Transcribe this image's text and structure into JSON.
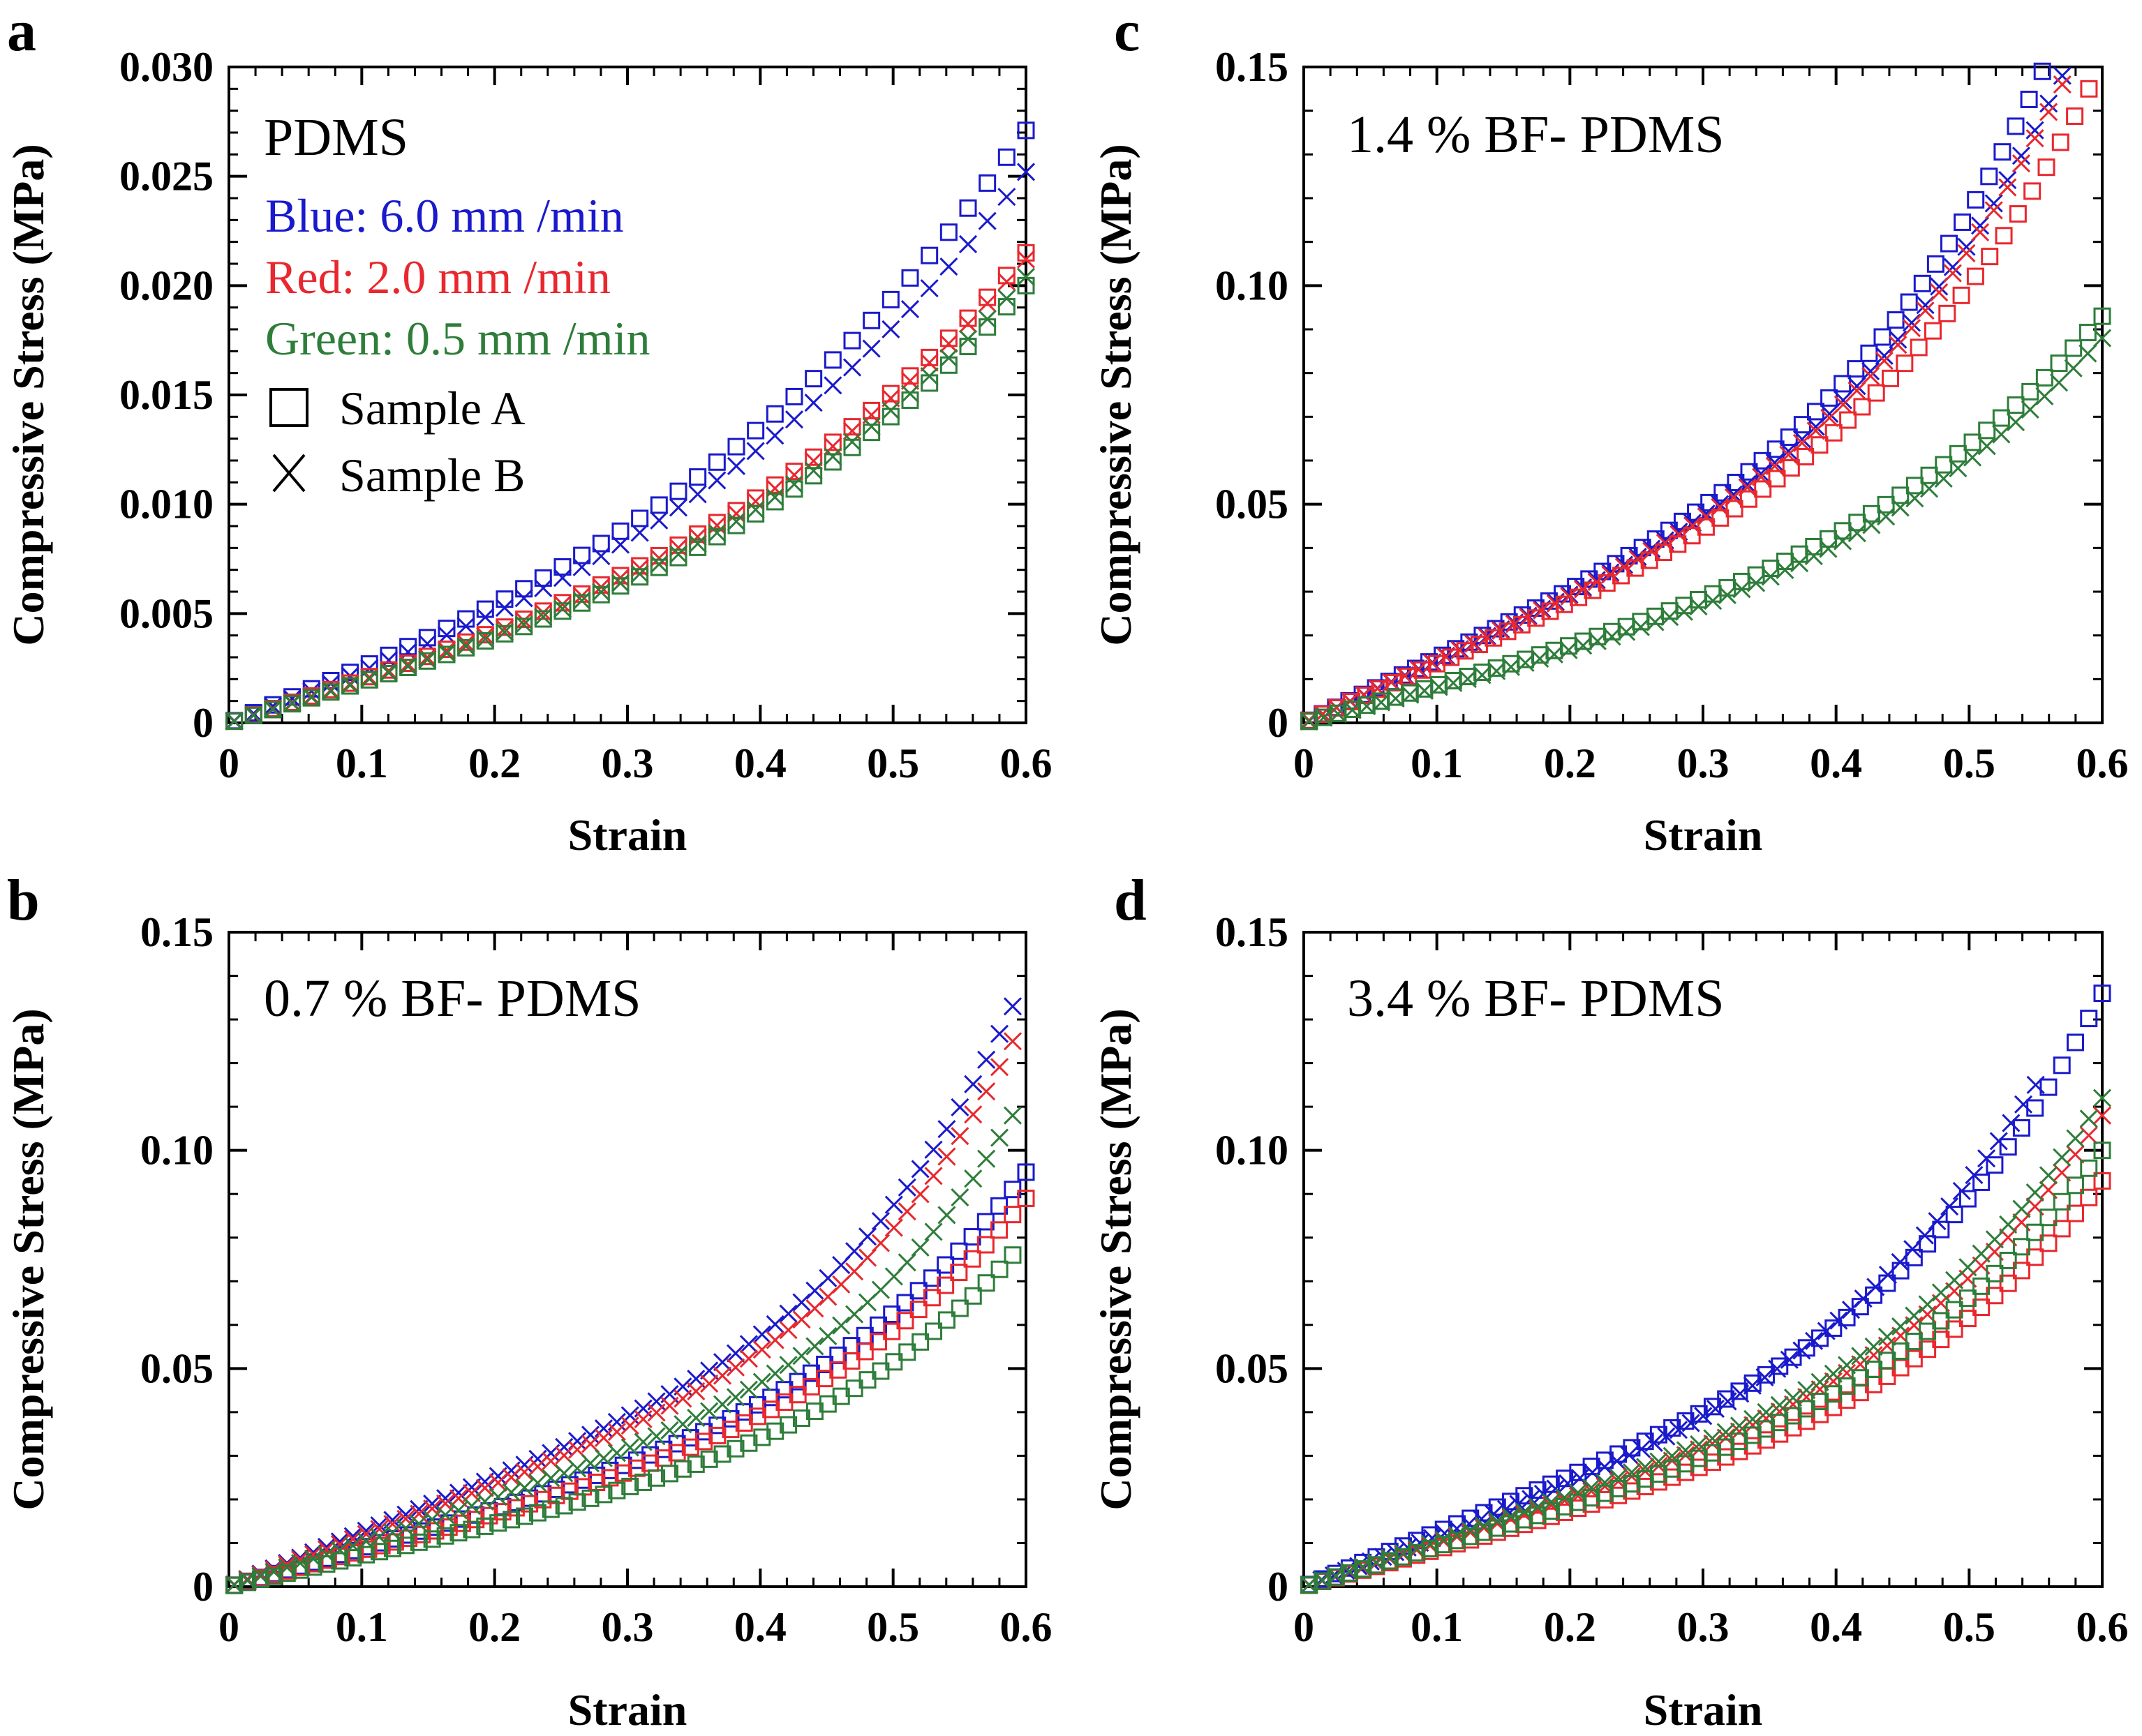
{
  "figure": {
    "legend": {
      "speed_lines": [
        {
          "label": "Blue: 6.0 mm /min",
          "color": "#1a1acc"
        },
        {
          "label": "Red: 2.0 mm /min",
          "color": "#e8282e"
        },
        {
          "label": "Green: 0.5 mm /min",
          "color": "#2e7d3a"
        }
      ],
      "markers": [
        {
          "symbol": "square",
          "label": "Sample A"
        },
        {
          "symbol": "x",
          "label": "Sample B"
        }
      ]
    },
    "colors": {
      "blue": "#1a1acc",
      "red": "#e8282e",
      "green": "#2e7d3a",
      "axis": "#000000"
    }
  },
  "chart_data": [
    {
      "panel": "a",
      "type": "scatter",
      "title": "PDMS",
      "xlabel": "Strain",
      "ylabel": "Compressive Stress (MPa)",
      "xlim": [
        0,
        0.6
      ],
      "ylim": [
        0,
        0.03
      ],
      "xticks": [
        "0",
        "0.1",
        "0.2",
        "0.3",
        "0.4",
        "0.5",
        "0.6"
      ],
      "yticks": [
        "0",
        "0.005",
        "0.010",
        "0.015",
        "0.020",
        "0.025",
        "0.030"
      ],
      "series": [
        {
          "name": "Blue Sample A",
          "color": "blue",
          "marker": "square",
          "xmax": 0.6,
          "y_end": 0.0271,
          "exponent": 2.0,
          "points": 42
        },
        {
          "name": "Blue Sample B",
          "color": "blue",
          "marker": "x",
          "xmax": 0.6,
          "y_end": 0.0252,
          "exponent": 2.0,
          "points": 42
        },
        {
          "name": "Red Sample A",
          "color": "red",
          "marker": "square",
          "xmax": 0.6,
          "y_end": 0.0215,
          "exponent": 2.3,
          "points": 42
        },
        {
          "name": "Red Sample B",
          "color": "red",
          "marker": "x",
          "xmax": 0.6,
          "y_end": 0.0212,
          "exponent": 2.3,
          "points": 42
        },
        {
          "name": "Green Sample A",
          "color": "green",
          "marker": "square",
          "xmax": 0.6,
          "y_end": 0.02,
          "exponent": 2.3,
          "points": 42
        },
        {
          "name": "Green Sample B",
          "color": "green",
          "marker": "x",
          "xmax": 0.6,
          "y_end": 0.0204,
          "exponent": 2.3,
          "points": 42
        }
      ]
    },
    {
      "panel": "b",
      "type": "scatter",
      "title": "0.7 % BF- PDMS",
      "xlabel": "Strain",
      "ylabel": "Compressive Stress (MPa)",
      "xlim": [
        0,
        0.6
      ],
      "ylim": [
        0,
        0.15
      ],
      "xticks": [
        "0",
        "0.1",
        "0.2",
        "0.3",
        "0.4",
        "0.5",
        "0.6"
      ],
      "yticks": [
        "0",
        "0.05",
        "0.10",
        "0.15"
      ],
      "series": [
        {
          "name": "Blue Sample A",
          "color": "blue",
          "marker": "square",
          "xmax": 0.6,
          "y_end": 0.095,
          "exponent": 3.4,
          "points": 60
        },
        {
          "name": "Blue Sample B",
          "color": "blue",
          "marker": "x",
          "xmax": 0.59,
          "y_end": 0.133,
          "exponent": 4.2,
          "points": 60
        },
        {
          "name": "Red Sample A",
          "color": "red",
          "marker": "square",
          "xmax": 0.6,
          "y_end": 0.089,
          "exponent": 3.4,
          "points": 60
        },
        {
          "name": "Red Sample B",
          "color": "red",
          "marker": "x",
          "xmax": 0.59,
          "y_end": 0.125,
          "exponent": 4.2,
          "points": 60
        },
        {
          "name": "Green Sample A",
          "color": "green",
          "marker": "square",
          "xmax": 0.59,
          "y_end": 0.076,
          "exponent": 3.6,
          "points": 60
        },
        {
          "name": "Green Sample B",
          "color": "green",
          "marker": "x",
          "xmax": 0.59,
          "y_end": 0.108,
          "exponent": 4.2,
          "points": 60
        }
      ]
    },
    {
      "panel": "c",
      "type": "scatter",
      "title": "1.4 % BF- PDMS",
      "xlabel": "Strain",
      "ylabel": "Compressive Stress (MPa)",
      "xlim": [
        0,
        0.6
      ],
      "ylim": [
        0,
        0.15
      ],
      "xticks": [
        "0",
        "0.1",
        "0.2",
        "0.3",
        "0.4",
        "0.5",
        "0.6"
      ],
      "yticks": [
        "0",
        "0.05",
        "0.10",
        "0.15"
      ],
      "series": [
        {
          "name": "Blue Sample A",
          "color": "blue",
          "marker": "square",
          "xmax": 0.555,
          "y_end": 0.149,
          "exponent": 3.2,
          "points": 56
        },
        {
          "name": "Blue Sample B",
          "color": "blue",
          "marker": "x",
          "xmax": 0.57,
          "y_end": 0.148,
          "exponent": 3.2,
          "points": 56
        },
        {
          "name": "Red Sample A",
          "color": "red",
          "marker": "square",
          "xmax": 0.59,
          "y_end": 0.145,
          "exponent": 3.2,
          "points": 56
        },
        {
          "name": "Red Sample B",
          "color": "red",
          "marker": "x",
          "xmax": 0.57,
          "y_end": 0.146,
          "exponent": 3.2,
          "points": 56
        },
        {
          "name": "Green Sample A",
          "color": "green",
          "marker": "square",
          "xmax": 0.6,
          "y_end": 0.093,
          "exponent": 2.8,
          "points": 56
        },
        {
          "name": "Green Sample B",
          "color": "green",
          "marker": "x",
          "xmax": 0.6,
          "y_end": 0.088,
          "exponent": 2.8,
          "points": 56
        }
      ]
    },
    {
      "panel": "d",
      "type": "scatter",
      "title": "3.4 % BF- PDMS",
      "xlabel": "Strain",
      "ylabel": "Compressive Stress (MPa)",
      "xlim": [
        0,
        0.6
      ],
      "ylim": [
        0,
        0.15
      ],
      "xticks": [
        "0",
        "0.1",
        "0.2",
        "0.3",
        "0.4",
        "0.5",
        "0.6"
      ],
      "yticks": [
        "0",
        "0.05",
        "0.10",
        "0.15"
      ],
      "series": [
        {
          "name": "Blue Sample A",
          "color": "blue",
          "marker": "square",
          "xmax": 0.6,
          "y_end": 0.136,
          "exponent": 3.5,
          "points": 60
        },
        {
          "name": "Blue Sample B",
          "color": "blue",
          "marker": "x",
          "xmax": 0.55,
          "y_end": 0.115,
          "exponent": 3.0,
          "points": 60
        },
        {
          "name": "Red Sample A",
          "color": "red",
          "marker": "square",
          "xmax": 0.6,
          "y_end": 0.093,
          "exponent": 3.3,
          "points": 60
        },
        {
          "name": "Red Sample B",
          "color": "red",
          "marker": "x",
          "xmax": 0.6,
          "y_end": 0.108,
          "exponent": 3.5,
          "points": 60
        },
        {
          "name": "Green Sample A",
          "color": "green",
          "marker": "square",
          "xmax": 0.6,
          "y_end": 0.1,
          "exponent": 3.3,
          "points": 60
        },
        {
          "name": "Green Sample B",
          "color": "green",
          "marker": "x",
          "xmax": 0.6,
          "y_end": 0.112,
          "exponent": 3.5,
          "points": 60
        }
      ]
    }
  ]
}
